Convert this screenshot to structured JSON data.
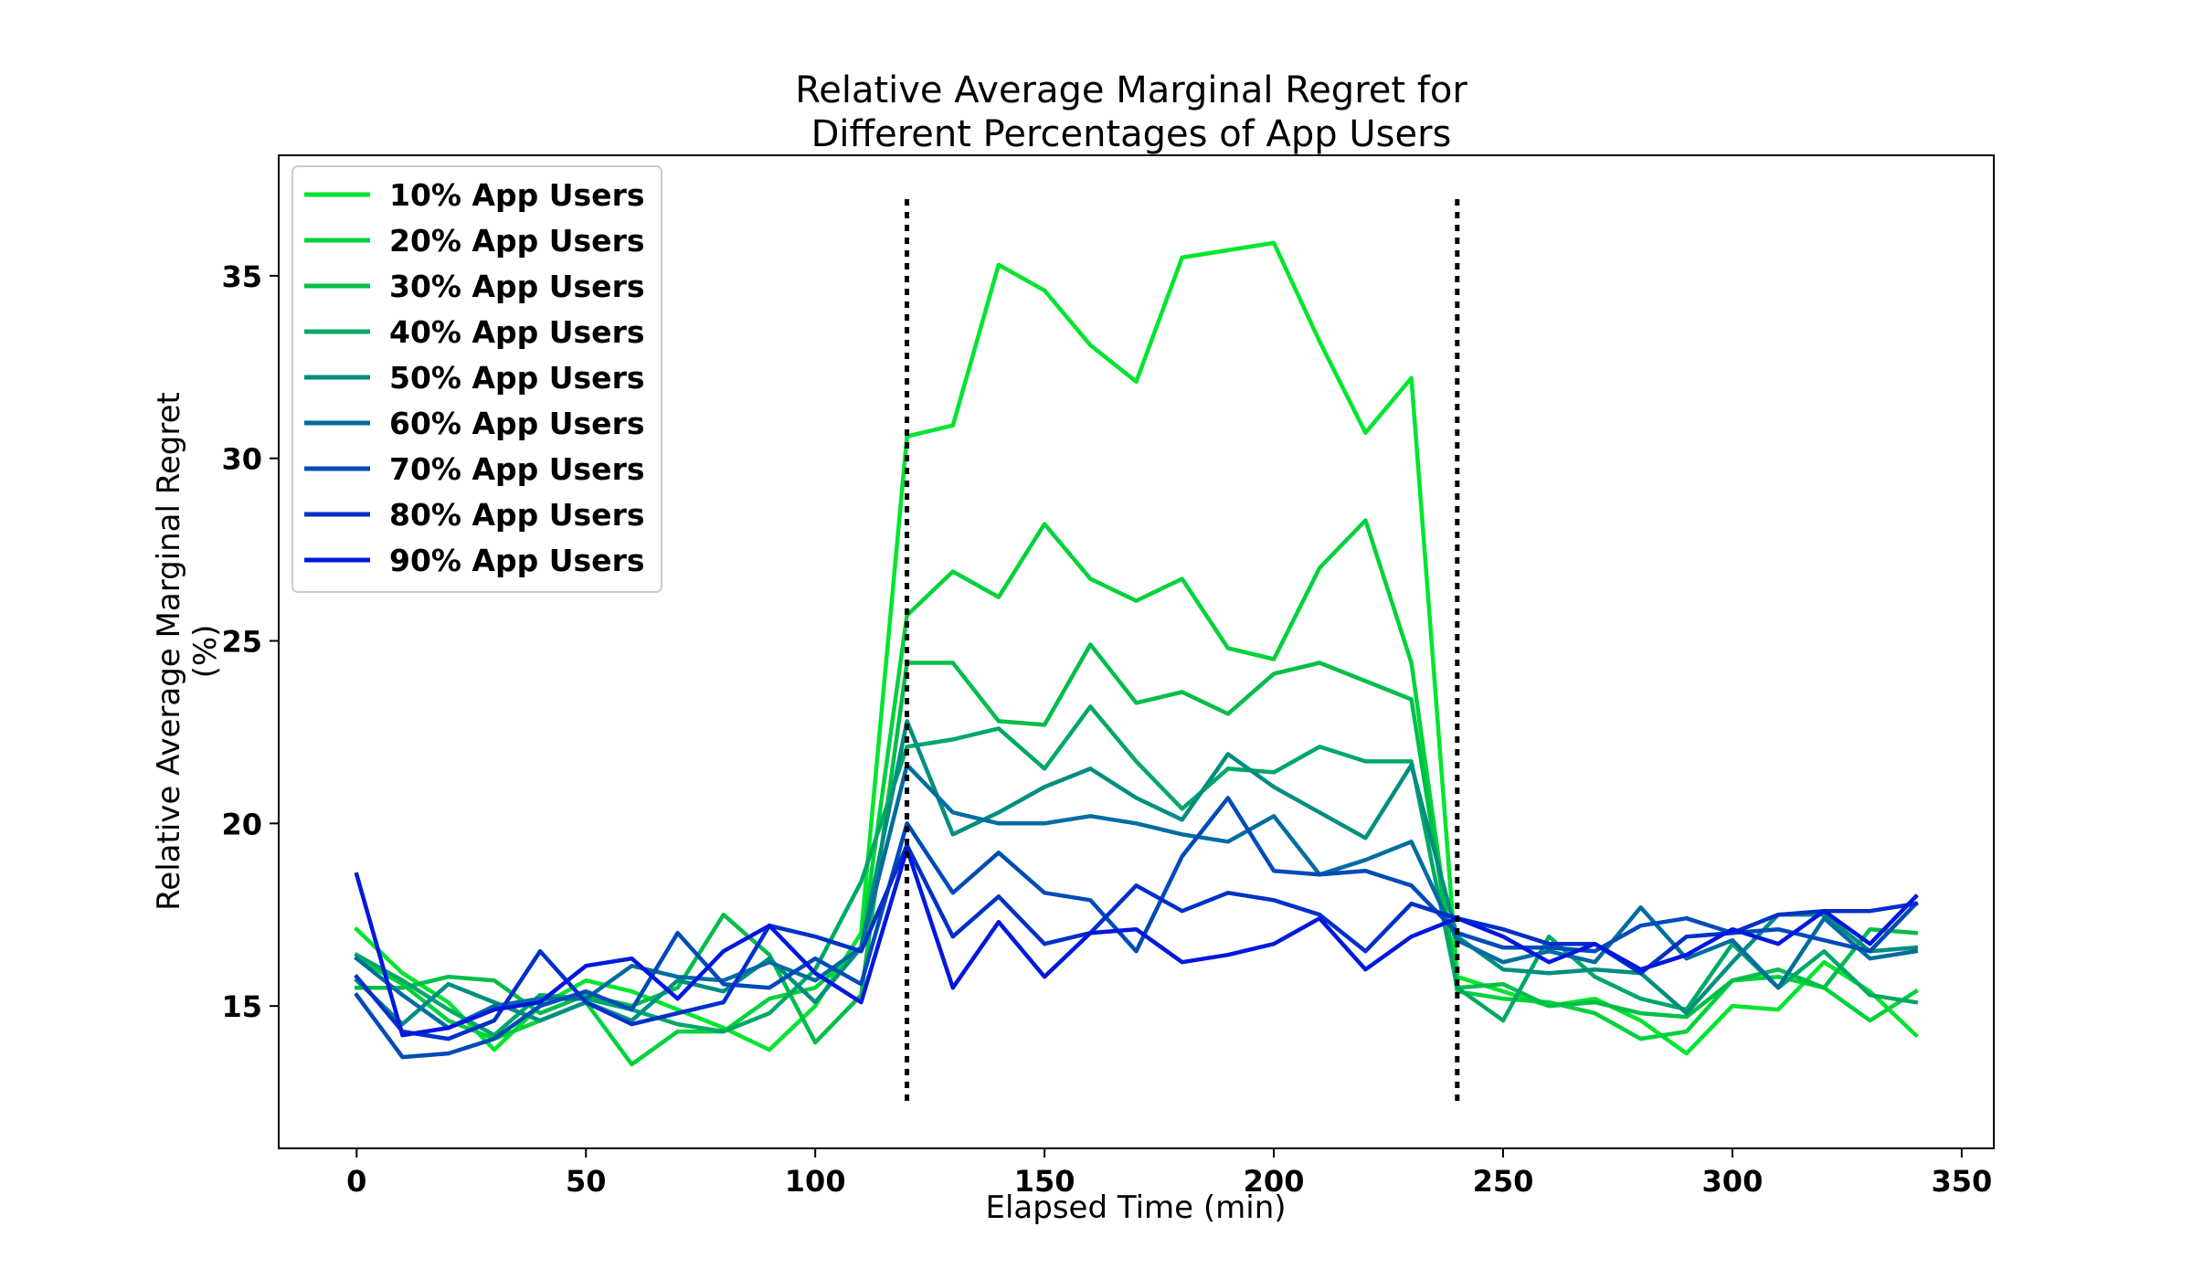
{
  "chart_data": {
    "type": "line",
    "title_line1": "Relative Average Marginal Regret for",
    "title_line2": "Different Percentages of App Users",
    "xlabel": "Elapsed Time (min)",
    "ylabel_line1": "Relative Average Marginal Regret",
    "ylabel_line2": "(%)",
    "xlim": [
      -17,
      357
    ],
    "ylim": [
      11.1,
      38.3
    ],
    "xticks": [
      0,
      50,
      100,
      150,
      200,
      250,
      300,
      350
    ],
    "yticks": [
      15,
      20,
      25,
      30,
      35
    ],
    "grid": false,
    "legend_position": "top-left",
    "vlines": [
      {
        "x": 120,
        "y_from": 12.3,
        "y_to": 37.1,
        "style": "dotted",
        "color": "#000000"
      },
      {
        "x": 240,
        "y_from": 12.3,
        "y_to": 37.1,
        "style": "dotted",
        "color": "#000000"
      }
    ],
    "x": [
      0,
      10,
      20,
      30,
      40,
      50,
      60,
      70,
      80,
      90,
      100,
      110,
      120,
      130,
      140,
      150,
      160,
      170,
      180,
      190,
      200,
      210,
      220,
      230,
      240,
      250,
      260,
      270,
      280,
      290,
      300,
      310,
      320,
      330,
      340
    ],
    "series": [
      {
        "name": "10% App Users",
        "color": "#00e52e",
        "values": [
          17.1,
          15.9,
          15.1,
          13.8,
          15.0,
          15.7,
          15.4,
          14.9,
          14.4,
          13.8,
          15.0,
          17.0,
          30.6,
          30.9,
          35.3,
          34.6,
          33.1,
          32.1,
          35.5,
          35.7,
          35.9,
          33.2,
          30.7,
          32.2,
          15.8,
          15.4,
          15.0,
          15.2,
          14.6,
          13.7,
          15.0,
          14.9,
          16.2,
          15.4,
          14.2
        ]
      },
      {
        "name": "20% App Users",
        "color": "#00d23a",
        "values": [
          16.3,
          15.6,
          14.6,
          14.1,
          14.6,
          15.1,
          13.4,
          14.3,
          14.3,
          15.2,
          15.5,
          16.6,
          25.7,
          26.9,
          26.2,
          28.2,
          26.7,
          26.1,
          26.7,
          24.8,
          24.5,
          27.0,
          28.3,
          24.4,
          15.4,
          15.2,
          15.1,
          14.8,
          14.1,
          14.3,
          15.7,
          15.8,
          15.5,
          14.6,
          15.4
        ]
      },
      {
        "name": "30% App Users",
        "color": "#00be48",
        "values": [
          15.5,
          15.5,
          15.8,
          15.7,
          14.8,
          15.3,
          15.0,
          15.5,
          17.5,
          16.4,
          14.0,
          15.3,
          24.4,
          24.4,
          22.8,
          22.7,
          24.9,
          23.3,
          23.6,
          23.0,
          24.1,
          24.4,
          23.9,
          23.4,
          15.5,
          15.6,
          15.0,
          15.1,
          14.8,
          14.7,
          15.7,
          16.0,
          15.5,
          17.1,
          17.0
        ]
      },
      {
        "name": "40% App Users",
        "color": "#00a866",
        "values": [
          16.4,
          15.7,
          14.9,
          14.2,
          15.3,
          15.2,
          14.9,
          14.5,
          14.3,
          14.8,
          16.0,
          18.4,
          22.1,
          22.3,
          22.6,
          21.5,
          23.2,
          21.7,
          20.4,
          21.5,
          21.4,
          22.1,
          21.7,
          21.7,
          15.5,
          14.6,
          16.9,
          15.8,
          15.2,
          14.9,
          16.7,
          15.5,
          16.5,
          15.3,
          15.1
        ]
      },
      {
        "name": "50% App Users",
        "color": "#008e80",
        "values": [
          15.7,
          14.5,
          15.6,
          15.1,
          14.6,
          15.1,
          14.6,
          15.7,
          15.4,
          16.3,
          15.1,
          16.6,
          22.8,
          19.7,
          20.3,
          21.0,
          21.5,
          20.7,
          20.1,
          21.9,
          21.0,
          20.3,
          19.6,
          21.6,
          16.9,
          16.0,
          15.9,
          16.0,
          15.9,
          14.8,
          16.2,
          17.5,
          17.5,
          16.5,
          16.6
        ]
      },
      {
        "name": "60% App Users",
        "color": "#006ca0",
        "values": [
          16.3,
          15.3,
          14.4,
          15.0,
          15.2,
          15.2,
          16.1,
          15.8,
          15.7,
          16.2,
          15.7,
          16.6,
          21.6,
          20.3,
          20.0,
          20.0,
          20.2,
          20.0,
          19.7,
          19.5,
          20.2,
          18.6,
          19.0,
          19.5,
          16.8,
          16.2,
          16.5,
          16.2,
          17.7,
          16.3,
          16.8,
          15.5,
          17.4,
          16.3,
          16.5
        ]
      },
      {
        "name": "70% App Users",
        "color": "#004bb8",
        "values": [
          15.3,
          13.6,
          13.7,
          14.1,
          15.0,
          15.4,
          14.9,
          17.0,
          15.6,
          15.5,
          16.3,
          15.6,
          20.0,
          18.1,
          19.2,
          18.1,
          17.9,
          16.5,
          19.1,
          20.7,
          18.7,
          18.6,
          18.7,
          18.3,
          17.0,
          16.6,
          16.6,
          16.5,
          17.2,
          17.4,
          17.0,
          17.1,
          16.8,
          16.5,
          17.8
        ]
      },
      {
        "name": "80% App Users",
        "color": "#0030c8",
        "values": [
          15.8,
          14.3,
          14.1,
          14.6,
          16.5,
          15.1,
          14.5,
          14.8,
          15.1,
          17.2,
          16.9,
          16.5,
          19.4,
          16.9,
          18.0,
          16.7,
          17.0,
          18.3,
          17.6,
          18.1,
          17.9,
          17.5,
          16.5,
          17.8,
          17.4,
          17.1,
          16.7,
          16.7,
          15.9,
          16.9,
          17.0,
          17.5,
          17.6,
          17.6,
          17.8
        ]
      },
      {
        "name": "90% App Users",
        "color": "#0018de",
        "values": [
          18.6,
          14.2,
          14.4,
          14.9,
          15.1,
          16.1,
          16.3,
          15.2,
          16.5,
          17.2,
          15.9,
          15.1,
          19.3,
          15.5,
          17.3,
          15.8,
          17.0,
          17.1,
          16.2,
          16.4,
          16.7,
          17.4,
          16.0,
          16.9,
          17.4,
          16.9,
          16.2,
          16.7,
          16.0,
          16.4,
          17.1,
          16.7,
          17.6,
          16.7,
          18.0
        ]
      }
    ]
  }
}
